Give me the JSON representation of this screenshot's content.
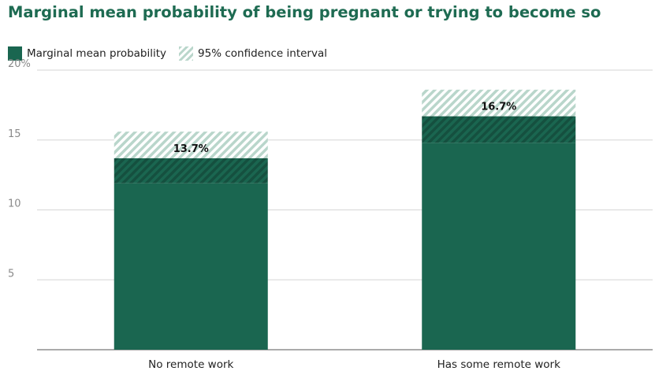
{
  "header": {
    "title": "Marginal mean probability of being pregnant or trying to become so"
  },
  "legend": {
    "items": [
      {
        "label": "Marginal mean probability",
        "icon": "solid-swatch-icon"
      },
      {
        "label": "95% confidence interval",
        "icon": "hatched-swatch-icon"
      }
    ]
  },
  "colors": {
    "title": "#1e6b52",
    "bar": "#1a6650",
    "ci_hatch": "#b9d6cb",
    "gridline": "#d6d6d6",
    "axis": "#555555",
    "tick_text": "#8a8a8a"
  },
  "chart_data": {
    "type": "bar",
    "title": "Marginal mean probability of being pregnant or trying to become so",
    "xlabel": "",
    "ylabel": "",
    "categories": [
      "No remote work",
      "Has some remote work"
    ],
    "series": [
      {
        "name": "Marginal mean probability",
        "values": [
          13.7,
          16.7
        ]
      }
    ],
    "confidence_interval": {
      "name": "95% confidence interval",
      "lower": [
        11.9,
        14.8
      ],
      "upper": [
        15.6,
        18.6
      ]
    },
    "data_labels": [
      "13.7%",
      "16.7%"
    ],
    "yticks": [
      5,
      10,
      15,
      20
    ],
    "ytick_labels": [
      "5",
      "10",
      "15",
      "20%"
    ],
    "ylim": [
      0,
      20
    ],
    "grid": true,
    "legend_position": "top-left"
  }
}
